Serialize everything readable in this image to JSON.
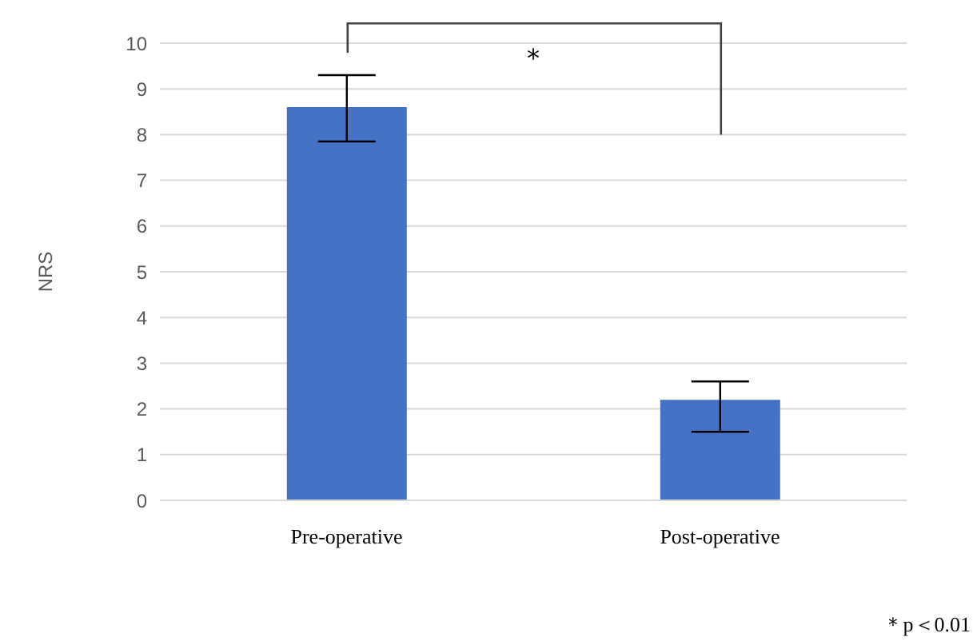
{
  "chart_data": {
    "type": "bar",
    "ylabel": "NRS",
    "categories": [
      "Pre-operative",
      "Post-operative"
    ],
    "values": [
      8.6,
      2.2
    ],
    "errors": [
      [
        7.85,
        9.3
      ],
      [
        1.5,
        2.6
      ]
    ],
    "color": "#4472c4",
    "ylim": [
      0,
      10
    ],
    "yticks": [
      0,
      1,
      2,
      3,
      4,
      5,
      6,
      7,
      8,
      9,
      10
    ],
    "grid": "y",
    "annotations": [
      "*",
      "＊p＜0.01"
    ]
  }
}
